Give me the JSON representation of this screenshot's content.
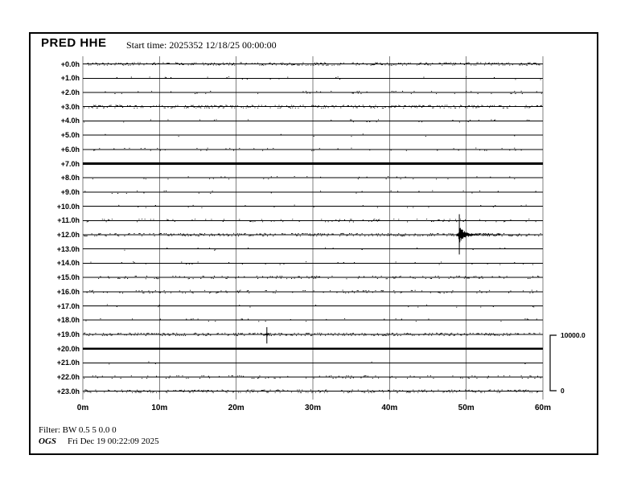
{
  "header": {
    "station": "PRED HHE",
    "start_time": "Start time: 2025352 12/18/25 00:00:00"
  },
  "chart_data": {
    "type": "line",
    "subtype": "helicorder-seismogram",
    "title": "PRED HHE",
    "start_time": "2025352 12/18/25 00:00:00",
    "x_unit": "minutes",
    "x_range_minutes": [
      0,
      60
    ],
    "x_tick_minutes": [
      0,
      10,
      20,
      30,
      40,
      50,
      60
    ],
    "x_tick_labels": [
      "0m",
      "10m",
      "20m",
      "30m",
      "40m",
      "50m",
      "60m"
    ],
    "rows_hours": 24,
    "grid": {
      "vertical_gridlines": true,
      "horizontal_gridlines": false,
      "color": "#7f7f7f"
    },
    "trace_color": "#000000",
    "rows": [
      {
        "label": "+0.0h",
        "noise": "high",
        "weight": "normal"
      },
      {
        "label": "+1.0h",
        "noise": "low",
        "weight": "normal"
      },
      {
        "label": "+2.0h",
        "noise": "low",
        "weight": "normal"
      },
      {
        "label": "+3.0h",
        "noise": "high",
        "weight": "normal"
      },
      {
        "label": "+4.0h",
        "noise": "low",
        "weight": "normal"
      },
      {
        "label": "+5.0h",
        "noise": "sparse",
        "weight": "normal"
      },
      {
        "label": "+6.0h",
        "noise": "low",
        "weight": "normal"
      },
      {
        "label": "+7.0h",
        "noise": "none",
        "weight": "bold"
      },
      {
        "label": "+8.0h",
        "noise": "low",
        "weight": "normal"
      },
      {
        "label": "+9.0h",
        "noise": "sparse",
        "weight": "normal"
      },
      {
        "label": "+10.0h",
        "noise": "sparse",
        "weight": "normal"
      },
      {
        "label": "+11.0h",
        "noise": "med",
        "weight": "normal"
      },
      {
        "label": "+12.0h",
        "noise": "high",
        "weight": "normal"
      },
      {
        "label": "+13.0h",
        "noise": "sparse",
        "weight": "normal"
      },
      {
        "label": "+14.0h",
        "noise": "low",
        "weight": "normal"
      },
      {
        "label": "+15.0h",
        "noise": "med",
        "weight": "normal"
      },
      {
        "label": "+16.0h",
        "noise": "med",
        "weight": "normal"
      },
      {
        "label": "+17.0h",
        "noise": "sparse",
        "weight": "normal"
      },
      {
        "label": "+18.0h",
        "noise": "low",
        "weight": "normal"
      },
      {
        "label": "+19.0h",
        "noise": "high",
        "weight": "normal"
      },
      {
        "label": "+20.0h",
        "noise": "none",
        "weight": "bold"
      },
      {
        "label": "+21.0h",
        "noise": "sparse",
        "weight": "normal"
      },
      {
        "label": "+22.0h",
        "noise": "med",
        "weight": "normal"
      },
      {
        "label": "+23.0h",
        "noise": "high",
        "weight": "normal"
      }
    ],
    "events": [
      {
        "row_label": "+12.0h",
        "hour_row": 12,
        "minute": 49.1,
        "peak_up_counts": 3700,
        "peak_down_counts": 3550,
        "packet_minutes": 2.2,
        "coda_minutes": 5.3,
        "description": "large event: sharp onset spike with decaying coda"
      },
      {
        "row_label": "+19.0h",
        "hour_row": 19,
        "minute": 24.0,
        "peak_up_counts": 1300,
        "peak_down_counts": 1650,
        "packet_minutes": 0.3,
        "coda_minutes": 0.3,
        "description": "small transient spike"
      }
    ],
    "scale_bar": {
      "max_value": 10000.0,
      "min_value": 0,
      "label_top": "10000.0",
      "label_bottom": "0"
    }
  },
  "footer": {
    "filter": "Filter: BW 0.5 5 0.0 0",
    "agency": "OGS",
    "timestamp": "Fri Dec 19 00:22:09 2025"
  },
  "colors": {
    "background": "#ffffff",
    "border": "#000000",
    "grid": "#7f7f7f",
    "trace": "#000000",
    "text": "#000000"
  }
}
